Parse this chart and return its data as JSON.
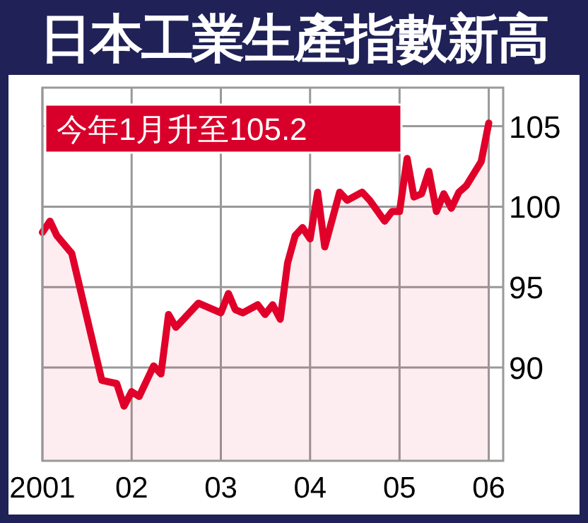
{
  "chart_data": {
    "type": "area",
    "title": "日本工業生產指數新高",
    "annotations": [
      "今年1月升至105.2"
    ],
    "x": [
      "2001-01",
      "2001-02",
      "2001-03",
      "2001-05",
      "2001-09",
      "2001-11",
      "2001-12",
      "2002-01",
      "2002-02",
      "2002-04",
      "2002-05",
      "2002-06",
      "2002-07",
      "2002-10",
      "2003-01",
      "2003-02",
      "2003-03",
      "2003-04",
      "2003-06",
      "2003-07",
      "2003-08",
      "2003-09",
      "2003-10",
      "2003-11",
      "2003-12",
      "2004-01",
      "2004-02",
      "2004-03",
      "2004-05",
      "2004-06",
      "2004-08",
      "2004-09",
      "2004-11",
      "2004-12",
      "2005-01",
      "2005-02",
      "2005-03",
      "2005-04",
      "2005-05",
      "2005-06",
      "2005-07",
      "2005-08",
      "2005-09",
      "2005-10",
      "2005-12",
      "2006-01"
    ],
    "series": [
      {
        "color": "#e0002a",
        "values": [
          98.4,
          99.1,
          98.2,
          97.1,
          89.2,
          89.0,
          87.6,
          88.5,
          88.2,
          90.1,
          89.6,
          93.3,
          92.5,
          94.0,
          93.4,
          94.6,
          93.6,
          93.4,
          93.9,
          93.3,
          93.9,
          93.0,
          96.5,
          98.2,
          98.7,
          98.0,
          100.9,
          97.5,
          100.9,
          100.4,
          100.9,
          100.4,
          99.1,
          99.7,
          99.7,
          103.0,
          100.6,
          100.8,
          102.2,
          99.7,
          100.8,
          99.9,
          100.9,
          101.3,
          102.8,
          105.2
        ]
      }
    ],
    "xlim": [
      "2001-01",
      "2006-03"
    ],
    "xticks": [
      {
        "value": "2001-01",
        "label": "2001"
      },
      {
        "value": "2002-01",
        "label": "02"
      },
      {
        "value": "2003-01",
        "label": "03"
      },
      {
        "value": "2004-01",
        "label": "04"
      },
      {
        "value": "2005-01",
        "label": "05"
      },
      {
        "value": "2006-01",
        "label": "06"
      }
    ],
    "ylim": [
      84.2,
      107.4
    ],
    "yticks": [
      90,
      95,
      100,
      105
    ],
    "grid": true
  }
}
